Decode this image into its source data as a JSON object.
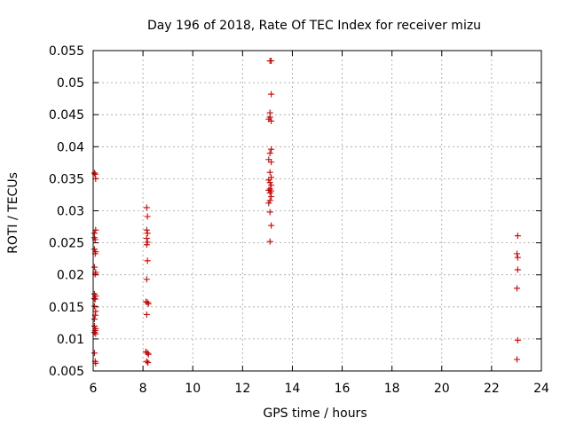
{
  "chart_data": {
    "type": "scatter",
    "title": "Day 196 of 2018, Rate Of TEC Index for receiver mizu",
    "xlabel": "GPS time / hours",
    "ylabel": "ROTI / TECUs",
    "xlim": [
      6,
      24
    ],
    "ylim": [
      0.005,
      0.055
    ],
    "xticks": [
      6,
      8,
      10,
      12,
      14,
      16,
      18,
      20,
      22,
      24
    ],
    "yticks": [
      0.005,
      0.01,
      0.015,
      0.02,
      0.025,
      0.03,
      0.035,
      0.04,
      0.045,
      0.05,
      0.055
    ],
    "grid": true,
    "marker": "+",
    "color": "#cc0000",
    "series": [
      {
        "name": "ROTI",
        "points": [
          [
            6.05,
            0.0359
          ],
          [
            6.08,
            0.0357
          ],
          [
            6.1,
            0.035
          ],
          [
            6.05,
            0.0265
          ],
          [
            6.1,
            0.027
          ],
          [
            6.05,
            0.0258
          ],
          [
            6.08,
            0.0255
          ],
          [
            6.05,
            0.024
          ],
          [
            6.1,
            0.0236
          ],
          [
            6.08,
            0.0233
          ],
          [
            6.05,
            0.0212
          ],
          [
            6.1,
            0.0204
          ],
          [
            6.08,
            0.0201
          ],
          [
            6.05,
            0.017
          ],
          [
            6.1,
            0.0167
          ],
          [
            6.05,
            0.0163
          ],
          [
            6.08,
            0.0162
          ],
          [
            6.05,
            0.0151
          ],
          [
            6.1,
            0.0143
          ],
          [
            6.08,
            0.0137
          ],
          [
            6.05,
            0.0131
          ],
          [
            6.05,
            0.012
          ],
          [
            6.1,
            0.0116
          ],
          [
            6.08,
            0.0113
          ],
          [
            6.05,
            0.011
          ],
          [
            6.1,
            0.0108
          ],
          [
            6.05,
            0.0078
          ],
          [
            6.08,
            0.0065
          ],
          [
            6.1,
            0.0062
          ],
          [
            8.15,
            0.0305
          ],
          [
            8.18,
            0.0291
          ],
          [
            8.15,
            0.027
          ],
          [
            8.18,
            0.0265
          ],
          [
            8.15,
            0.0257
          ],
          [
            8.18,
            0.0251
          ],
          [
            8.15,
            0.0247
          ],
          [
            8.18,
            0.0222
          ],
          [
            8.15,
            0.0193
          ],
          [
            8.12,
            0.0158
          ],
          [
            8.18,
            0.0157
          ],
          [
            8.22,
            0.0155
          ],
          [
            8.15,
            0.0138
          ],
          [
            8.12,
            0.008
          ],
          [
            8.18,
            0.0078
          ],
          [
            8.22,
            0.0076
          ],
          [
            8.15,
            0.0065
          ],
          [
            8.2,
            0.0063
          ],
          [
            13.1,
            0.0534
          ],
          [
            13.15,
            0.0534
          ],
          [
            13.15,
            0.0482
          ],
          [
            13.1,
            0.0453
          ],
          [
            13.05,
            0.0443
          ],
          [
            13.15,
            0.044
          ],
          [
            13.1,
            0.0446
          ],
          [
            13.15,
            0.0396
          ],
          [
            13.1,
            0.039
          ],
          [
            13.05,
            0.038
          ],
          [
            13.15,
            0.0376
          ],
          [
            13.1,
            0.036
          ],
          [
            13.15,
            0.0352
          ],
          [
            13.05,
            0.0348
          ],
          [
            13.1,
            0.0344
          ],
          [
            13.15,
            0.034
          ],
          [
            13.1,
            0.0334
          ],
          [
            13.05,
            0.0332
          ],
          [
            13.15,
            0.0331
          ],
          [
            13.1,
            0.0328
          ],
          [
            13.15,
            0.0322
          ],
          [
            13.1,
            0.0316
          ],
          [
            13.05,
            0.0312
          ],
          [
            13.1,
            0.0298
          ],
          [
            13.15,
            0.0277
          ],
          [
            13.1,
            0.0252
          ],
          [
            23.05,
            0.0261
          ],
          [
            23.02,
            0.0233
          ],
          [
            23.05,
            0.0227
          ],
          [
            23.05,
            0.0208
          ],
          [
            23.02,
            0.0179
          ],
          [
            23.05,
            0.0098
          ],
          [
            23.02,
            0.0068
          ]
        ]
      }
    ]
  }
}
